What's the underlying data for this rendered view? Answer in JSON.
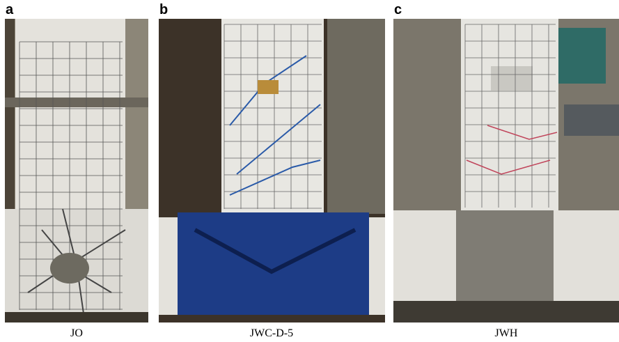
{
  "panels": [
    {
      "letter": "a",
      "caption": "JO"
    },
    {
      "letter": "b",
      "caption": "JWC-D-5"
    },
    {
      "letter": "c",
      "caption": "JWH"
    }
  ]
}
